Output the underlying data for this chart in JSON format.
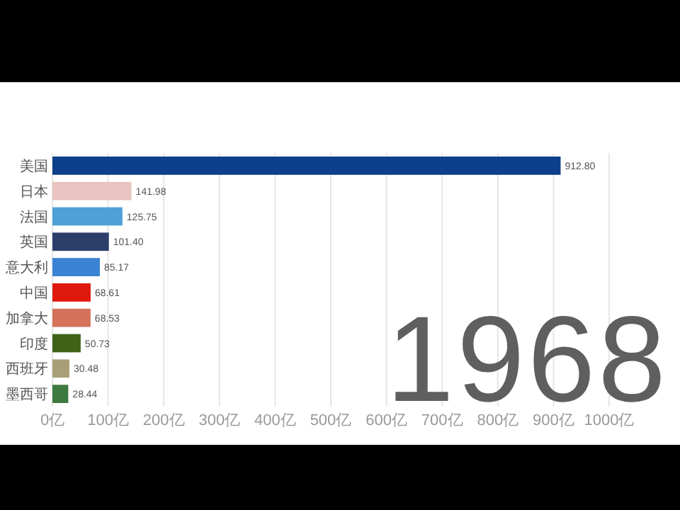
{
  "chart_data": {
    "type": "bar",
    "orientation": "horizontal",
    "grid": "x",
    "categories": [
      "美国",
      "日本",
      "法国",
      "英国",
      "意大利",
      "中国",
      "加拿大",
      "印度",
      "西班牙",
      "墨西哥"
    ],
    "values": [
      912.8,
      141.98,
      125.75,
      101.4,
      85.17,
      68.61,
      68.53,
      50.73,
      30.48,
      28.44
    ],
    "value_labels": [
      "912.80",
      "141.98",
      "125.75",
      "101.40",
      "85.17",
      "68.61",
      "68.53",
      "50.73",
      "30.48",
      "28.44"
    ],
    "colors": [
      "#0d3f8a",
      "#e9c4c0",
      "#4fa0d8",
      "#2c3e6a",
      "#3a82d4",
      "#e0190f",
      "#d4735a",
      "#3f6219",
      "#a89f78",
      "#3e7a40"
    ],
    "xlim": [
      0,
      1000
    ],
    "xticks": [
      {
        "value": 0,
        "label": "0亿"
      },
      {
        "value": 100,
        "label": "100亿"
      },
      {
        "value": 200,
        "label": "200亿"
      },
      {
        "value": 300,
        "label": "300亿"
      },
      {
        "value": 400,
        "label": "400亿"
      },
      {
        "value": 500,
        "label": "500亿"
      },
      {
        "value": 600,
        "label": "600亿"
      },
      {
        "value": 700,
        "label": "700亿"
      },
      {
        "value": 800,
        "label": "800亿"
      },
      {
        "value": 900,
        "label": "900亿"
      },
      {
        "value": 1000,
        "label": "1000亿"
      }
    ],
    "annotations": [
      "1968"
    ]
  }
}
